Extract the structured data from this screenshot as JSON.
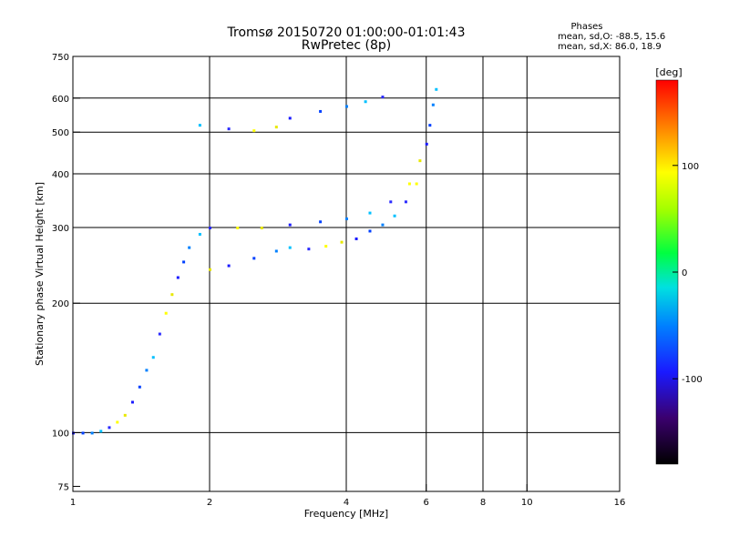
{
  "chart_data": {
    "type": "scatter",
    "title": "Tromsø 20150720 01:00:00-01:01:43",
    "subtitle": "RwPretec (8p)",
    "xlabel": "Frequency [MHz]",
    "ylabel": "Stationary phase Virtual Height [km]",
    "x_scale": "log",
    "y_scale": "log",
    "xlim": [
      1,
      16
    ],
    "ylim": [
      73,
      750
    ],
    "x_ticks": [
      1,
      2,
      4,
      6,
      8,
      10,
      16
    ],
    "y_ticks": [
      75,
      100,
      200,
      300,
      400,
      500,
      600,
      750
    ],
    "grid": true,
    "phase_stats": {
      "heading": "Phases",
      "line_o": "mean, sd,O: -88.5, 15.6",
      "line_x": "mean, sd,X: 86.0, 18.9"
    },
    "colorbar": {
      "label": "[deg]",
      "range": [
        -180,
        180
      ],
      "ticks": [
        "100",
        "0",
        "-100"
      ],
      "tick_values": [
        100,
        0,
        -100
      ]
    },
    "series": [
      {
        "values": [
          {
            "f": 1.0,
            "h": 100
          },
          {
            "f": 1.05,
            "h": 100
          },
          {
            "f": 1.1,
            "h": 100
          },
          {
            "f": 1.15,
            "h": 101
          },
          {
            "f": 1.2,
            "h": 103
          },
          {
            "f": 1.25,
            "h": 106
          },
          {
            "f": 1.3,
            "h": 110
          },
          {
            "f": 1.35,
            "h": 118
          },
          {
            "f": 1.4,
            "h": 128
          },
          {
            "f": 1.45,
            "h": 140
          },
          {
            "f": 1.5,
            "h": 150
          },
          {
            "f": 1.55,
            "h": 170
          },
          {
            "f": 1.6,
            "h": 190
          },
          {
            "f": 1.65,
            "h": 210
          },
          {
            "f": 1.7,
            "h": 230
          },
          {
            "f": 1.75,
            "h": 250
          },
          {
            "f": 1.8,
            "h": 270
          },
          {
            "f": 1.9,
            "h": 290
          },
          {
            "f": 2.0,
            "h": 300
          },
          {
            "f": 2.3,
            "h": 300
          },
          {
            "f": 2.6,
            "h": 300
          },
          {
            "f": 3.0,
            "h": 305
          },
          {
            "f": 3.5,
            "h": 310
          },
          {
            "f": 4.0,
            "h": 315
          },
          {
            "f": 4.5,
            "h": 325
          },
          {
            "f": 5.0,
            "h": 345
          },
          {
            "f": 5.5,
            "h": 380
          },
          {
            "f": 5.8,
            "h": 430
          },
          {
            "f": 6.0,
            "h": 470
          },
          {
            "f": 6.1,
            "h": 520
          },
          {
            "f": 6.2,
            "h": 580
          },
          {
            "f": 6.3,
            "h": 630
          }
        ]
      },
      {
        "values": [
          {
            "f": 1.9,
            "h": 520
          },
          {
            "f": 2.2,
            "h": 510
          },
          {
            "f": 2.5,
            "h": 505
          },
          {
            "f": 2.8,
            "h": 515
          },
          {
            "f": 3.0,
            "h": 540
          },
          {
            "f": 3.5,
            "h": 560
          },
          {
            "f": 4.0,
            "h": 575
          },
          {
            "f": 4.4,
            "h": 590
          },
          {
            "f": 4.8,
            "h": 605
          }
        ]
      },
      {
        "values": [
          {
            "f": 2.0,
            "h": 240
          },
          {
            "f": 2.2,
            "h": 245
          },
          {
            "f": 2.5,
            "h": 255
          },
          {
            "f": 2.8,
            "h": 265
          },
          {
            "f": 3.0,
            "h": 270
          },
          {
            "f": 3.3,
            "h": 268
          },
          {
            "f": 3.6,
            "h": 272
          },
          {
            "f": 3.9,
            "h": 278
          },
          {
            "f": 4.2,
            "h": 283
          },
          {
            "f": 4.5,
            "h": 295
          },
          {
            "f": 4.8,
            "h": 305
          },
          {
            "f": 5.1,
            "h": 320
          },
          {
            "f": 5.4,
            "h": 345
          },
          {
            "f": 5.7,
            "h": 380
          }
        ]
      }
    ]
  }
}
